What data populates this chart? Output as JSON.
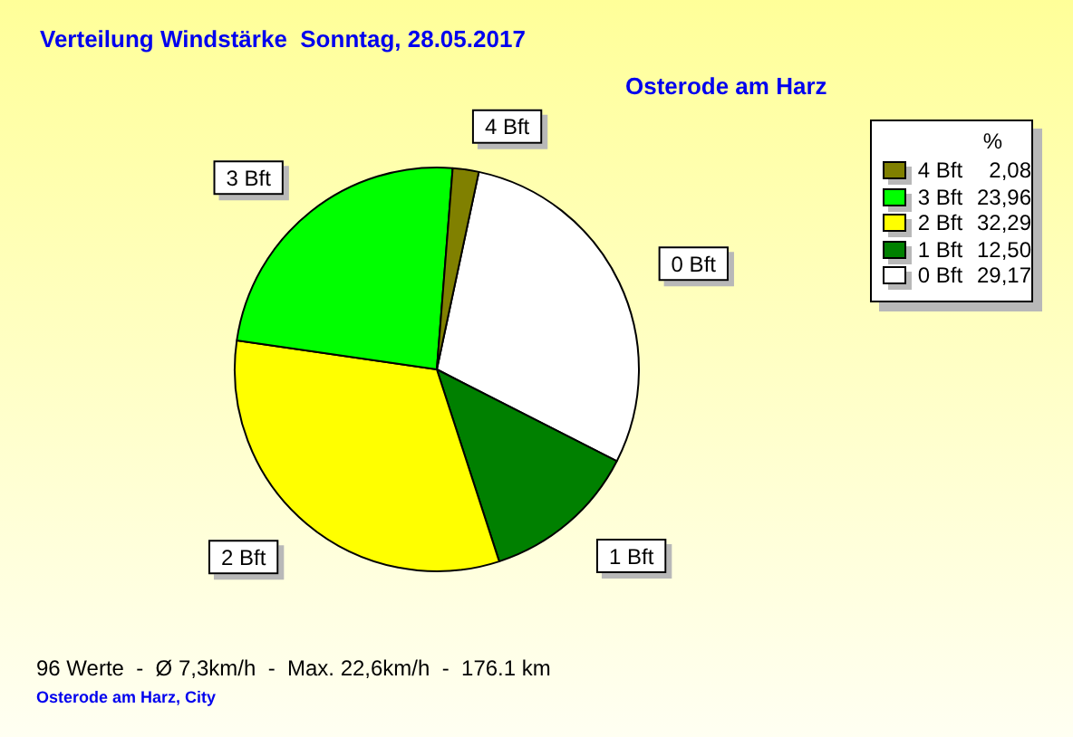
{
  "chart_data": {
    "type": "pie",
    "title": "Verteilung Windstärke  Sonntag, 28.05.2017",
    "subtitle": "Osterode am Harz",
    "legend_title": "%",
    "categories": [
      "0 Bft",
      "1 Bft",
      "2 Bft",
      "3 Bft",
      "4 Bft"
    ],
    "values": [
      29.17,
      12.5,
      32.29,
      23.96,
      2.08
    ],
    "colors": [
      "#ffffff",
      "#008000",
      "#ffff00",
      "#00ff00",
      "#808000"
    ],
    "value_labels": [
      "29,17",
      "12,50",
      "32,29",
      "23,96",
      "2,08"
    ],
    "legend": "top right",
    "annotations": [
      "96 Werte  -  Ø 7,3km/h  -  Max. 22,6km/h  -  176.1 km",
      "Osterode am Harz, City"
    ]
  }
}
